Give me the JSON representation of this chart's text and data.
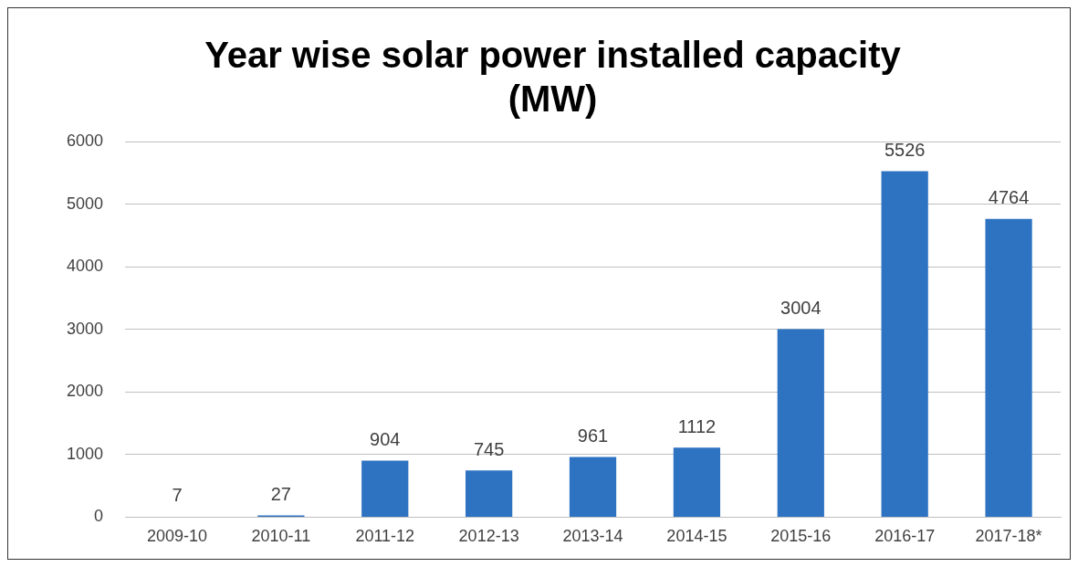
{
  "chart_data": {
    "type": "bar",
    "title": "Year wise solar power installed capacity\n(MW)",
    "categories": [
      "2009-10",
      "2010-11",
      "2011-12",
      "2012-13",
      "2013-14",
      "2014-15",
      "2015-16",
      "2016-17",
      "2017-18*"
    ],
    "values": [
      7,
      27,
      904,
      745,
      961,
      1112,
      3004,
      5526,
      4764
    ],
    "color": "#2e73c2",
    "ylim": [
      0,
      6000
    ],
    "yticks": [
      0,
      1000,
      2000,
      3000,
      4000,
      5000,
      6000
    ],
    "grid": "y",
    "data_labels": true,
    "legend": false
  }
}
